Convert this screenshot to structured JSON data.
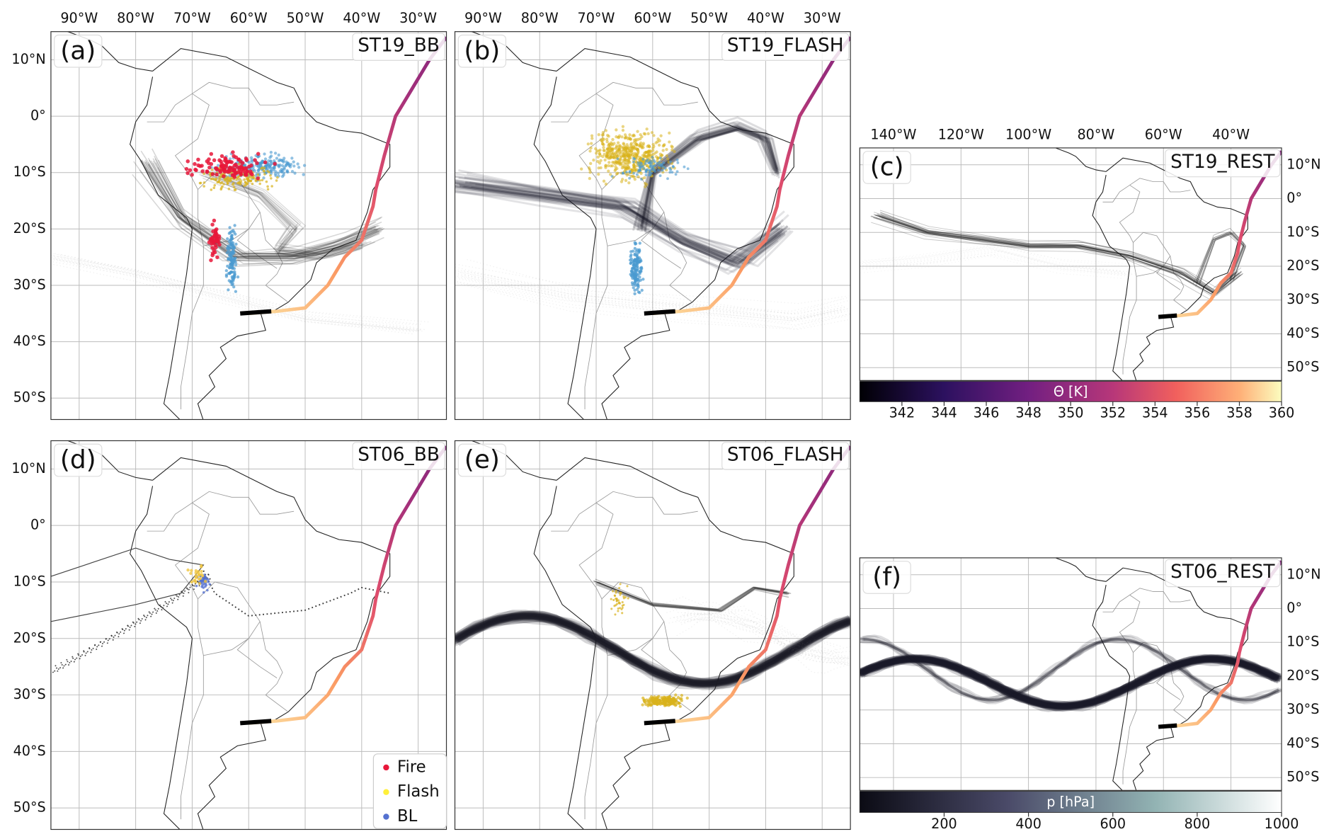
{
  "panels": [
    {
      "label": "(a)",
      "title": "ST19_BB",
      "lon_ticks": [
        "90°W",
        "80°W",
        "70°W",
        "60°W",
        "50°W",
        "40°W",
        "30°W"
      ],
      "lat_ticks": [
        "10°N",
        "0°",
        "10°S",
        "20°S",
        "30°S",
        "40°S",
        "50°S"
      ]
    },
    {
      "label": "(b)",
      "title": "ST19_FLASH",
      "lon_ticks": [
        "90°W",
        "80°W",
        "70°W",
        "60°W",
        "50°W",
        "40°W",
        "30°W"
      ]
    },
    {
      "label": "(c)",
      "title": "ST19_REST",
      "lon_ticks": [
        "140°W",
        "120°W",
        "100°W",
        "80°W",
        "60°W",
        "40°W"
      ],
      "lat_ticks": [
        "10°N",
        "0°",
        "10°S",
        "20°S",
        "30°S",
        "40°S",
        "50°S"
      ]
    },
    {
      "label": "(d)",
      "title": "ST06_BB",
      "lat_ticks": [
        "10°N",
        "0°",
        "10°S",
        "20°S",
        "30°S",
        "40°S",
        "50°S"
      ]
    },
    {
      "label": "(e)",
      "title": "ST06_FLASH"
    },
    {
      "label": "(f)",
      "title": "ST06_REST",
      "lat_ticks": [
        "10°N",
        "0°",
        "10°S",
        "20°S",
        "30°S",
        "40°S",
        "50°S"
      ]
    }
  ],
  "colorbars": [
    {
      "label": "Θ [K]",
      "range": [
        340,
        360
      ],
      "ticks": [
        342,
        344,
        346,
        348,
        350,
        352,
        354,
        356,
        358,
        360
      ]
    },
    {
      "label": "p [hPa]",
      "range": [
        0,
        1000
      ],
      "ticks": [
        200,
        400,
        600,
        800,
        1000
      ]
    }
  ],
  "legend": [
    {
      "name": "Fire",
      "color": "#e8173a"
    },
    {
      "name": "Flash",
      "color": "#fff03a"
    },
    {
      "name": "BL",
      "color": "#5471d0"
    }
  ]
}
